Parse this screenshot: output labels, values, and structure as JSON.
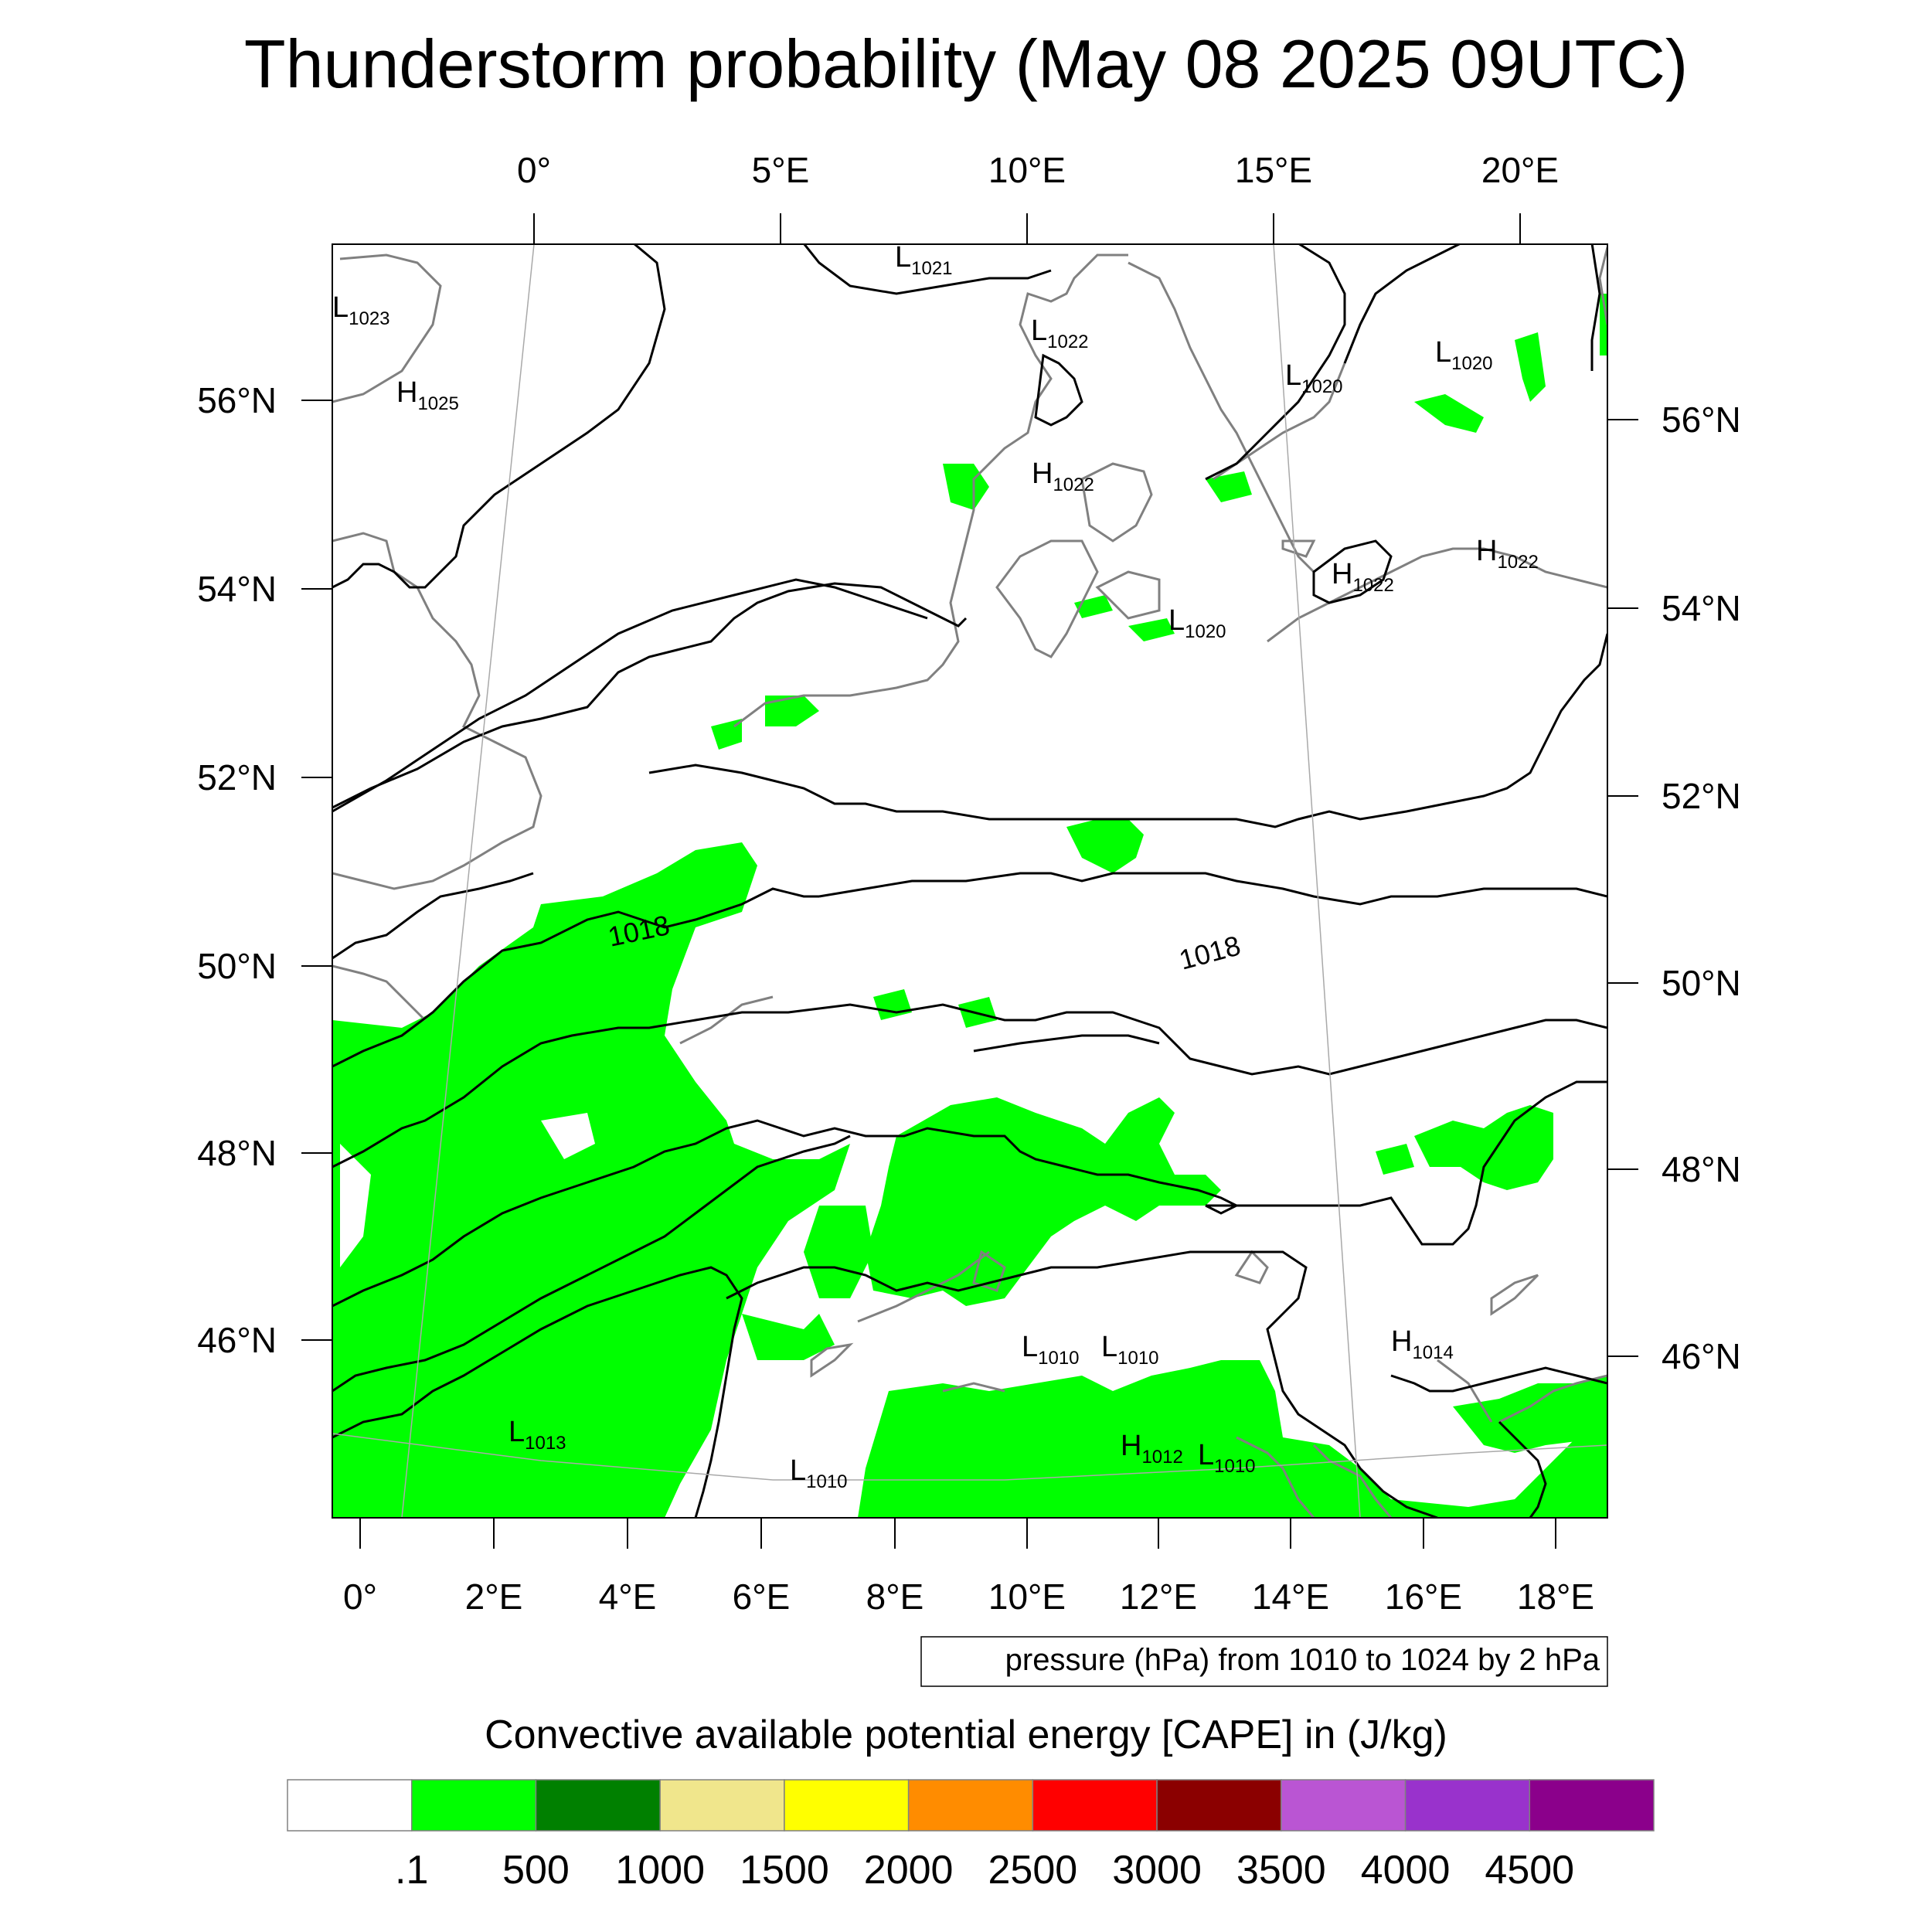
{
  "title": "Thunderstorm probability (May 08 2025 09UTC)",
  "top_lon_labels": [
    "0°",
    "5°E",
    "10°E",
    "15°E",
    "20°E"
  ],
  "bottom_lon_labels": [
    "0°",
    "2°E",
    "4°E",
    "6°E",
    "8°E",
    "10°E",
    "12°E",
    "14°E",
    "16°E",
    "18°E"
  ],
  "left_lat_labels": [
    "56°N",
    "54°N",
    "52°N",
    "50°N",
    "48°N",
    "46°N"
  ],
  "right_lat_labels": [
    "56°N",
    "54°N",
    "52°N",
    "50°N",
    "48°N",
    "46°N"
  ],
  "pressure_centers": [
    {
      "type": "L",
      "value": "1021"
    },
    {
      "type": "L",
      "value": "1023"
    },
    {
      "type": "H",
      "value": "1025"
    },
    {
      "type": "L",
      "value": "1022"
    },
    {
      "type": "L",
      "value": "1020"
    },
    {
      "type": "L",
      "value": "1020"
    },
    {
      "type": "H",
      "value": "1022"
    },
    {
      "type": "H",
      "value": "1022"
    },
    {
      "type": "H",
      "value": "1022"
    },
    {
      "type": "L",
      "value": "1020"
    },
    {
      "type": "L",
      "value": "1010"
    },
    {
      "type": "L",
      "value": "1010"
    },
    {
      "type": "H",
      "value": "1014"
    },
    {
      "type": "L",
      "value": "1013"
    },
    {
      "type": "L",
      "value": "1010"
    },
    {
      "type": "H",
      "value": "1012"
    },
    {
      "type": "L",
      "value": "1010"
    }
  ],
  "isobar_labels": [
    "1018",
    "1018"
  ],
  "contour_info": "pressure (hPa) from 1010 to 1024 by 2 hPa",
  "colorbar": {
    "title": "Convective available potential energy [CAPE] in (J/kg)",
    "colors": [
      "#ffffff",
      "#00ff00",
      "#008000",
      "#f0e68c",
      "#ffff00",
      "#ff8c00",
      "#ff0000",
      "#8b0000",
      "#ba55d3",
      "#9932cc",
      "#8b008b"
    ],
    "labels": [
      ".1",
      "500",
      "1000",
      "1500",
      "2000",
      "2500",
      "3000",
      "3500",
      "4000",
      "4500"
    ]
  }
}
